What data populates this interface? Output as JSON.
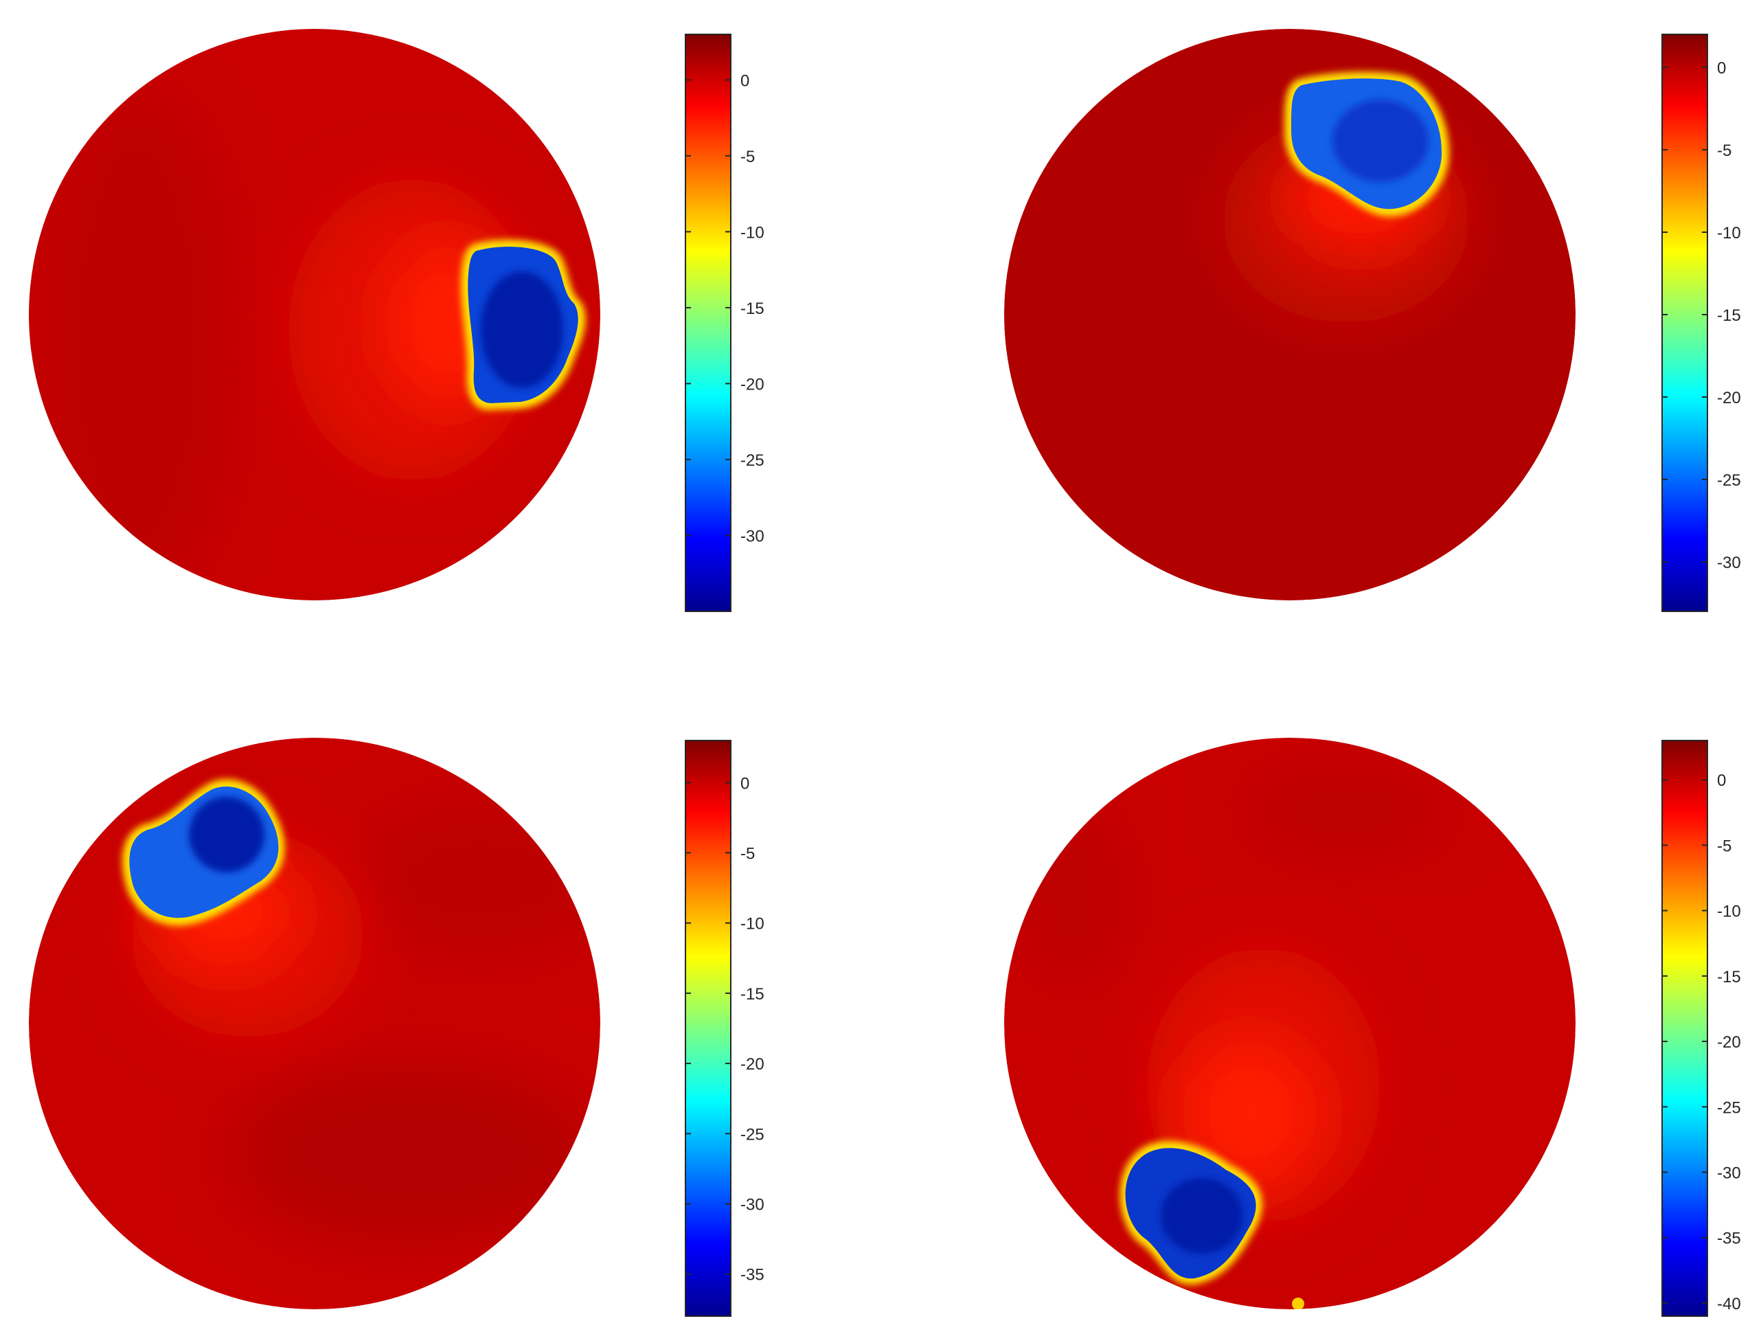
{
  "chart_data": [
    {
      "type": "heatmap",
      "panel": "top-left",
      "shape": "circular domain",
      "background_value": -1,
      "colormap": "jet",
      "legend_placement": "colorbar right",
      "colorbar": {
        "range": [
          -35,
          3
        ],
        "ticks": [
          0,
          -5,
          -10,
          -15,
          -20,
          -25,
          -30
        ],
        "tick_labels": [
          "0",
          "-5",
          "-10",
          "-15",
          "-20",
          "-25",
          "-30"
        ]
      },
      "inclusion": {
        "min_value": -34,
        "location": "right edge, middle",
        "halo_value": -4
      }
    },
    {
      "type": "heatmap",
      "panel": "top-right",
      "shape": "circular domain",
      "background_value": 1,
      "colormap": "jet",
      "legend_placement": "colorbar right",
      "colorbar": {
        "range": [
          -33,
          2
        ],
        "ticks": [
          0,
          -5,
          -10,
          -15,
          -20,
          -25,
          -30
        ],
        "tick_labels": [
          "0",
          "-5",
          "-10",
          "-15",
          "-20",
          "-25",
          "-30"
        ]
      },
      "inclusion": {
        "min_value": -29,
        "location": "top, slightly right",
        "halo_value": -3
      }
    },
    {
      "type": "heatmap",
      "panel": "bottom-left",
      "shape": "circular domain",
      "background_value": -1,
      "colormap": "jet",
      "legend_placement": "colorbar right",
      "colorbar": {
        "range": [
          -38,
          3
        ],
        "ticks": [
          0,
          -5,
          -10,
          -15,
          -20,
          -25,
          -30,
          -35
        ],
        "tick_labels": [
          "0",
          "-5",
          "-10",
          "-15",
          "-20",
          "-25",
          "-30",
          "-35"
        ]
      },
      "inclusion": {
        "min_value": -33,
        "location": "top-left",
        "halo_value": -4
      }
    },
    {
      "type": "heatmap",
      "panel": "bottom-right",
      "shape": "circular domain",
      "background_value": -1,
      "colormap": "jet",
      "legend_placement": "colorbar right",
      "colorbar": {
        "range": [
          -41,
          3
        ],
        "ticks": [
          0,
          -5,
          -10,
          -15,
          -20,
          -25,
          -30,
          -35,
          -40
        ],
        "tick_labels": [
          "0",
          "-5",
          "-10",
          "-15",
          "-20",
          "-25",
          "-30",
          "-35",
          "-40"
        ]
      },
      "inclusion": {
        "min_value": -39,
        "location": "bottom-left",
        "halo_value": -4
      }
    }
  ],
  "colors": {
    "jet_stops": [
      "#00008f",
      "#0000ff",
      "#00ffff",
      "#ffff00",
      "#ff0000",
      "#800000"
    ],
    "background_dark": "#b00000",
    "background_mid": "#c80000",
    "halo_red": "#ff1a00",
    "inclusion_blue": "#1560e8",
    "inclusion_core": "#001aa8"
  }
}
